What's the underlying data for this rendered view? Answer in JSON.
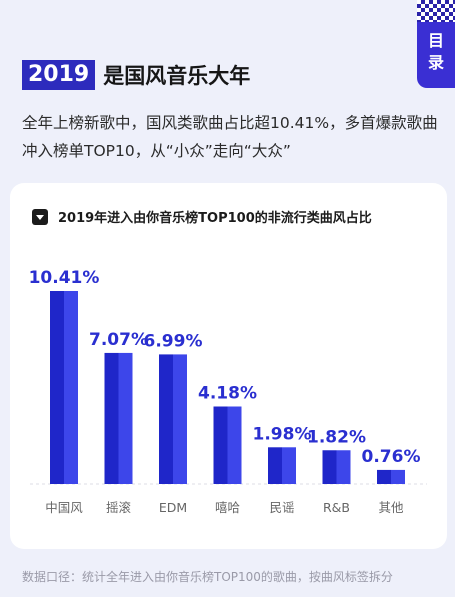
{
  "toc": {
    "label_line1": "目",
    "label_line2": "录"
  },
  "header": {
    "year": "2019",
    "title": "是国风音乐大年",
    "subtitle": "全年上榜新歌中，国风类歌曲占比超10.41%，多首爆款歌曲冲入榜单TOP10，从“小众”走向“大众”"
  },
  "colors": {
    "bar_light": "#3d46ea",
    "bar_dark": "#1f26c9",
    "label": "#2a2fd0",
    "axis_text": "#666666"
  },
  "chart_data": {
    "type": "bar",
    "title": "2019年进入由你音乐榜TOP100的非流行类曲风占比",
    "categories": [
      "中国风",
      "摇滚",
      "EDM",
      "嘻哈",
      "民谣",
      "R&B",
      "其他"
    ],
    "values": [
      10.41,
      7.07,
      6.99,
      4.18,
      1.98,
      1.82,
      0.76
    ],
    "value_labels": [
      "10.41%",
      "7.07%",
      "6.99%",
      "4.18%",
      "1.98%",
      "1.82%",
      "0.76%"
    ],
    "unit": "%",
    "ylim": [
      0,
      10.41
    ],
    "grid": false,
    "legend": "none"
  },
  "footnote": "数据口径：统计全年进入由你音乐榜TOP100的歌曲，按曲风标签拆分"
}
